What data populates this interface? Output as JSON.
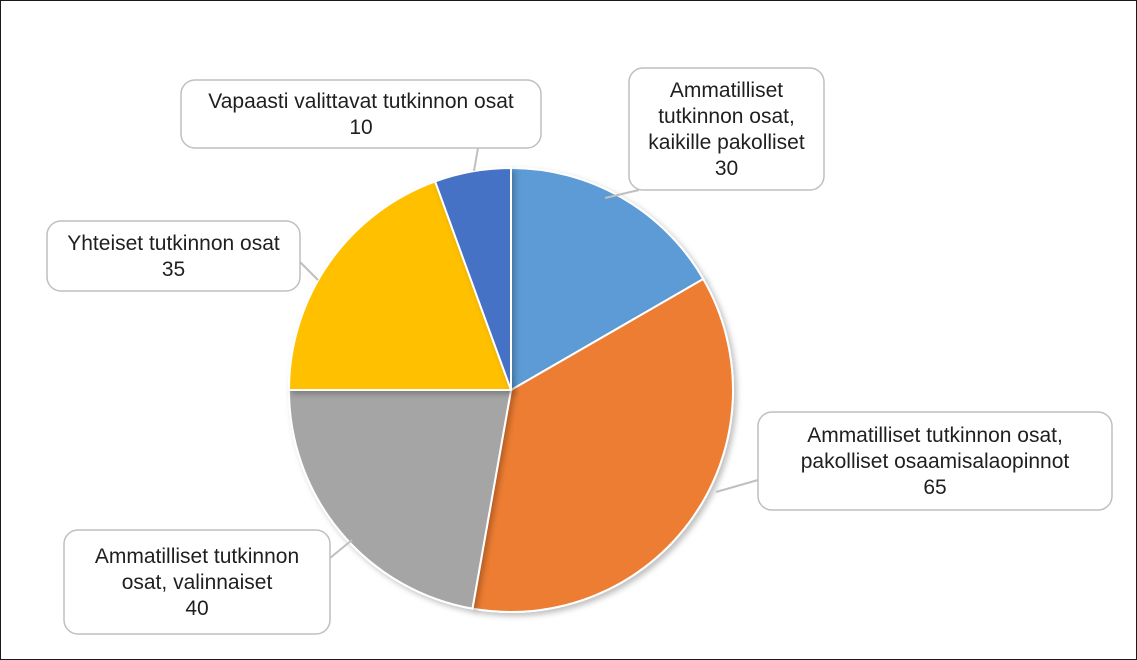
{
  "chart_data": {
    "type": "pie",
    "start_angle_deg": 0,
    "direction": "clockwise",
    "slices": [
      {
        "label_lines": [
          "Ammatilliset",
          "tutkinnon osat,",
          "kaikille pakolliset"
        ],
        "value": 30,
        "value_label": "30",
        "color": "#5b9bd5"
      },
      {
        "label_lines": [
          "Ammatilliset tutkinnon osat,",
          "pakolliset osaamisalaopinnot"
        ],
        "value": 65,
        "value_label": "65",
        "color": "#ed7d31"
      },
      {
        "label_lines": [
          "Ammatilliset tutkinnon",
          "osat, valinnaiset"
        ],
        "value": 40,
        "value_label": "40",
        "color": "#a5a5a5"
      },
      {
        "label_lines": [
          "Yhteiset tutkinnon osat"
        ],
        "value": 35,
        "value_label": "35",
        "color": "#ffc000"
      },
      {
        "label_lines": [
          "Vapaasti valittavat tutkinnon osat"
        ],
        "value": 10,
        "value_label": "10",
        "color": "#4472c4"
      }
    ],
    "labels": "callouts-with-leader-lines",
    "legend": "none",
    "title": ""
  }
}
